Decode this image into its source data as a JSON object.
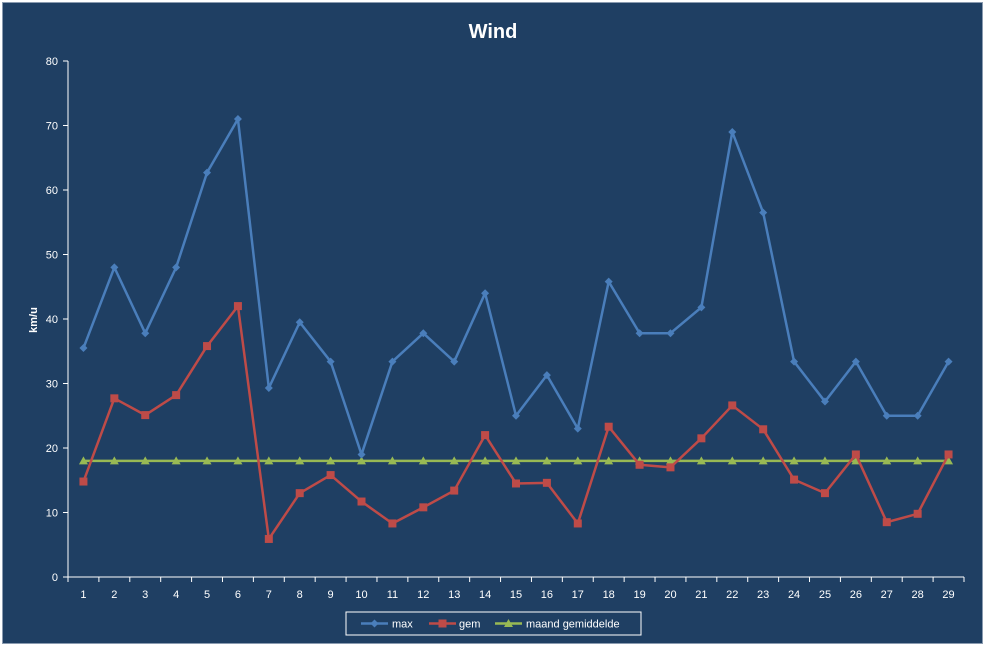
{
  "chart_data": {
    "type": "line",
    "title": "Wind",
    "xlabel": "",
    "ylabel": "km/u",
    "ylim": [
      0,
      80
    ],
    "yticks": [
      0,
      10,
      20,
      30,
      40,
      50,
      60,
      70,
      80
    ],
    "categories": [
      "1",
      "2",
      "3",
      "4",
      "5",
      "6",
      "7",
      "8",
      "9",
      "10",
      "11",
      "12",
      "13",
      "14",
      "15",
      "16",
      "17",
      "18",
      "19",
      "20",
      "21",
      "22",
      "23",
      "24",
      "25",
      "26",
      "27",
      "28",
      "29"
    ],
    "grid": false,
    "legend_position": "bottom",
    "series": [
      {
        "name": "max",
        "color": "#4a7ebb",
        "marker": "diamond",
        "values": [
          35.5,
          48,
          37.8,
          48,
          62.7,
          71,
          29.3,
          39.5,
          33.4,
          19,
          33.4,
          37.8,
          33.4,
          44,
          25,
          31.3,
          23,
          45.8,
          37.8,
          37.8,
          41.8,
          69,
          56.5,
          33.4,
          27.2,
          33.4,
          25,
          25,
          33.4
        ]
      },
      {
        "name": "gem",
        "color": "#be4b48",
        "marker": "square",
        "values": [
          14.8,
          27.7,
          25.1,
          28.2,
          35.8,
          42,
          5.9,
          13,
          15.8,
          11.7,
          8.3,
          10.8,
          13.4,
          22,
          14.5,
          14.6,
          8.3,
          23.3,
          17.4,
          17,
          21.5,
          26.6,
          22.9,
          15.1,
          13,
          19,
          8.5,
          9.8,
          19
        ]
      },
      {
        "name": "maand gemiddelde",
        "color": "#98b954",
        "marker": "triangle",
        "values": [
          18,
          18,
          18,
          18,
          18,
          18,
          18,
          18,
          18,
          18,
          18,
          18,
          18,
          18,
          18,
          18,
          18,
          18,
          18,
          18,
          18,
          18,
          18,
          18,
          18,
          18,
          18,
          18,
          18
        ]
      }
    ]
  }
}
